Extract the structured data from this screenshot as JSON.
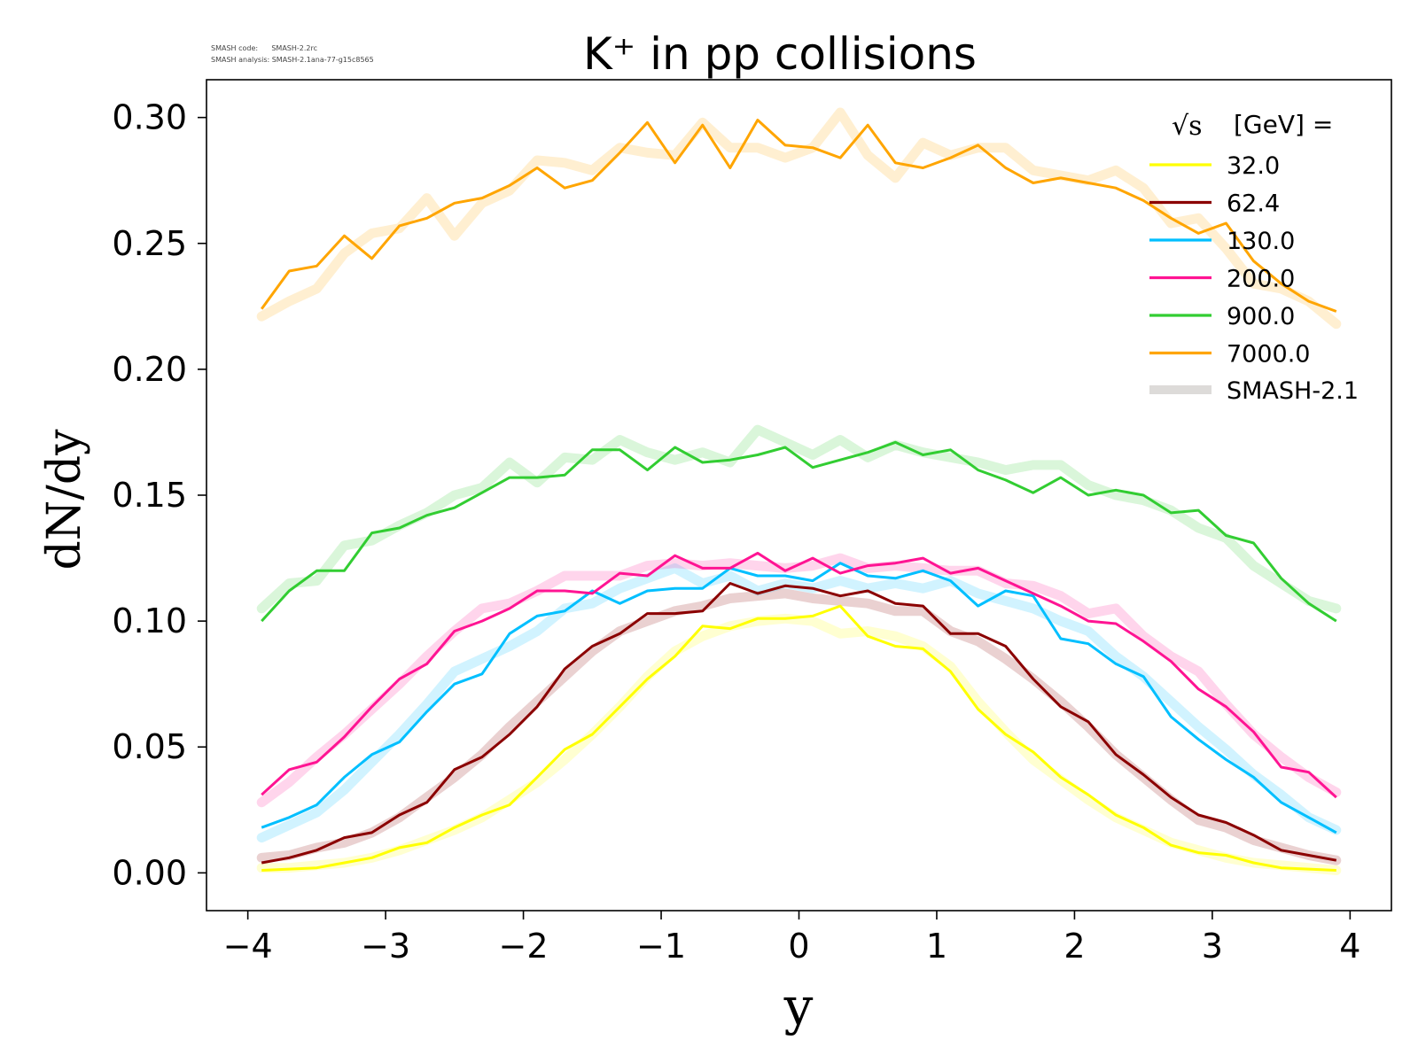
{
  "header": {
    "version_line1": "SMASH code:      SMASH-2.2rc",
    "version_line2": "SMASH analysis: SMASH-2.1ana-77-g15c8565"
  },
  "chart_data": {
    "type": "line",
    "title": "K⁺ in pp collisions",
    "xlabel": "y",
    "ylabel": "dN/dy",
    "xlim": [
      -4.3,
      4.3
    ],
    "ylim": [
      -0.015,
      0.315
    ],
    "xticks": [
      -4,
      -3,
      -2,
      -1,
      0,
      1,
      2,
      3,
      4
    ],
    "xtick_labels": [
      "−4",
      "−3",
      "−2",
      "−1",
      "0",
      "1",
      "2",
      "3",
      "4"
    ],
    "yticks": [
      0.0,
      0.05,
      0.1,
      0.15,
      0.2,
      0.25,
      0.3
    ],
    "ytick_labels": [
      "0.00",
      "0.05",
      "0.10",
      "0.15",
      "0.20",
      "0.25",
      "0.30"
    ],
    "grid": false,
    "legend": {
      "position": "top-right",
      "title_prefix": "√s",
      "title_suffix": "[GeV] =",
      "reference_label": "SMASH-2.1"
    },
    "x": [
      -3.9,
      -3.7,
      -3.5,
      -3.3,
      -3.1,
      -2.9,
      -2.7,
      -2.5,
      -2.3,
      -2.1,
      -1.9,
      -1.7,
      -1.5,
      -1.3,
      -1.1,
      -0.9,
      -0.7,
      -0.5,
      -0.3,
      -0.1,
      0.1,
      0.3,
      0.5,
      0.7,
      0.9,
      1.1,
      1.3,
      1.5,
      1.7,
      1.9,
      2.1,
      2.3,
      2.5,
      2.7,
      2.9,
      3.1,
      3.3,
      3.5,
      3.7,
      3.9
    ],
    "series": [
      {
        "name": "32.0",
        "color": "#ffff00",
        "values": [
          0.001,
          0.0015,
          0.002,
          0.004,
          0.006,
          0.01,
          0.012,
          0.018,
          0.023,
          0.027,
          0.038,
          0.049,
          0.055,
          0.066,
          0.077,
          0.086,
          0.098,
          0.097,
          0.101,
          0.101,
          0.102,
          0.106,
          0.094,
          0.09,
          0.089,
          0.08,
          0.065,
          0.055,
          0.048,
          0.038,
          0.031,
          0.023,
          0.018,
          0.011,
          0.008,
          0.007,
          0.004,
          0.002,
          0.0015,
          0.001
        ],
        "reference": [
          0.002,
          0.002,
          0.003,
          0.004,
          0.006,
          0.009,
          0.013,
          0.017,
          0.022,
          0.029,
          0.036,
          0.045,
          0.055,
          0.066,
          0.078,
          0.088,
          0.094,
          0.098,
          0.1,
          0.101,
          0.1,
          0.095,
          0.096,
          0.094,
          0.09,
          0.082,
          0.068,
          0.056,
          0.045,
          0.037,
          0.029,
          0.022,
          0.017,
          0.012,
          0.009,
          0.006,
          0.004,
          0.003,
          0.002,
          0.001
        ]
      },
      {
        "name": "62.4",
        "color": "#8b0000",
        "values": [
          0.004,
          0.006,
          0.009,
          0.014,
          0.016,
          0.023,
          0.028,
          0.041,
          0.046,
          0.055,
          0.066,
          0.081,
          0.09,
          0.095,
          0.103,
          0.103,
          0.104,
          0.115,
          0.111,
          0.114,
          0.113,
          0.11,
          0.112,
          0.107,
          0.106,
          0.095,
          0.095,
          0.09,
          0.077,
          0.066,
          0.06,
          0.047,
          0.039,
          0.03,
          0.023,
          0.02,
          0.015,
          0.009,
          0.007,
          0.005
        ],
        "reference": [
          0.006,
          0.007,
          0.01,
          0.012,
          0.016,
          0.022,
          0.03,
          0.038,
          0.047,
          0.058,
          0.068,
          0.078,
          0.088,
          0.096,
          0.1,
          0.104,
          0.106,
          0.109,
          0.11,
          0.111,
          0.109,
          0.108,
          0.107,
          0.104,
          0.104,
          0.096,
          0.092,
          0.085,
          0.077,
          0.068,
          0.058,
          0.047,
          0.038,
          0.029,
          0.021,
          0.018,
          0.013,
          0.01,
          0.007,
          0.005
        ]
      },
      {
        "name": "130.0",
        "color": "#00bfff",
        "values": [
          0.018,
          0.022,
          0.027,
          0.038,
          0.047,
          0.052,
          0.064,
          0.075,
          0.079,
          0.095,
          0.102,
          0.104,
          0.112,
          0.107,
          0.112,
          0.113,
          0.113,
          0.121,
          0.118,
          0.118,
          0.116,
          0.123,
          0.118,
          0.117,
          0.12,
          0.116,
          0.106,
          0.112,
          0.11,
          0.093,
          0.091,
          0.083,
          0.078,
          0.062,
          0.053,
          0.045,
          0.038,
          0.028,
          0.022,
          0.016
        ],
        "reference": [
          0.014,
          0.019,
          0.024,
          0.033,
          0.044,
          0.055,
          0.067,
          0.08,
          0.085,
          0.09,
          0.096,
          0.105,
          0.107,
          0.113,
          0.117,
          0.121,
          0.115,
          0.118,
          0.112,
          0.115,
          0.113,
          0.116,
          0.113,
          0.115,
          0.113,
          0.116,
          0.111,
          0.108,
          0.105,
          0.1,
          0.096,
          0.086,
          0.078,
          0.068,
          0.058,
          0.049,
          0.039,
          0.031,
          0.022,
          0.017
        ]
      },
      {
        "name": "200.0",
        "color": "#ff1493",
        "values": [
          0.031,
          0.041,
          0.044,
          0.054,
          0.066,
          0.077,
          0.083,
          0.096,
          0.1,
          0.105,
          0.112,
          0.112,
          0.111,
          0.119,
          0.118,
          0.126,
          0.121,
          0.121,
          0.127,
          0.12,
          0.125,
          0.119,
          0.122,
          0.123,
          0.125,
          0.119,
          0.121,
          0.116,
          0.111,
          0.106,
          0.1,
          0.099,
          0.092,
          0.084,
          0.073,
          0.066,
          0.056,
          0.042,
          0.04,
          0.03
        ],
        "reference": [
          0.028,
          0.036,
          0.046,
          0.055,
          0.065,
          0.075,
          0.086,
          0.096,
          0.105,
          0.107,
          0.112,
          0.118,
          0.118,
          0.118,
          0.122,
          0.123,
          0.122,
          0.123,
          0.122,
          0.121,
          0.122,
          0.125,
          0.121,
          0.122,
          0.121,
          0.12,
          0.12,
          0.115,
          0.114,
          0.11,
          0.103,
          0.105,
          0.094,
          0.086,
          0.08,
          0.067,
          0.055,
          0.046,
          0.038,
          0.032
        ]
      },
      {
        "name": "900.0",
        "color": "#32cd32",
        "values": [
          0.1,
          0.112,
          0.12,
          0.12,
          0.135,
          0.137,
          0.142,
          0.145,
          0.151,
          0.157,
          0.157,
          0.158,
          0.168,
          0.168,
          0.16,
          0.169,
          0.163,
          0.164,
          0.166,
          0.169,
          0.161,
          0.164,
          0.167,
          0.171,
          0.166,
          0.168,
          0.16,
          0.156,
          0.151,
          0.157,
          0.15,
          0.152,
          0.15,
          0.143,
          0.144,
          0.134,
          0.131,
          0.117,
          0.107,
          0.1
        ],
        "reference": [
          0.105,
          0.115,
          0.116,
          0.13,
          0.132,
          0.138,
          0.143,
          0.15,
          0.153,
          0.163,
          0.155,
          0.165,
          0.164,
          0.172,
          0.167,
          0.164,
          0.167,
          0.163,
          0.176,
          0.171,
          0.166,
          0.172,
          0.165,
          0.17,
          0.167,
          0.165,
          0.163,
          0.16,
          0.162,
          0.162,
          0.154,
          0.15,
          0.148,
          0.144,
          0.137,
          0.133,
          0.122,
          0.115,
          0.108,
          0.105
        ]
      },
      {
        "name": "7000.0",
        "color": "#ffa500",
        "values": [
          0.224,
          0.239,
          0.241,
          0.253,
          0.244,
          0.257,
          0.26,
          0.266,
          0.268,
          0.273,
          0.28,
          0.272,
          0.275,
          0.286,
          0.298,
          0.282,
          0.297,
          0.28,
          0.299,
          0.289,
          0.288,
          0.284,
          0.297,
          0.282,
          0.28,
          0.284,
          0.289,
          0.28,
          0.274,
          0.276,
          0.274,
          0.272,
          0.267,
          0.26,
          0.254,
          0.258,
          0.243,
          0.234,
          0.227,
          0.223
        ],
        "reference": [
          0.221,
          0.227,
          0.232,
          0.246,
          0.254,
          0.256,
          0.268,
          0.253,
          0.266,
          0.271,
          0.283,
          0.282,
          0.279,
          0.288,
          0.286,
          0.285,
          0.298,
          0.288,
          0.288,
          0.284,
          0.288,
          0.302,
          0.285,
          0.276,
          0.29,
          0.285,
          0.288,
          0.288,
          0.279,
          0.277,
          0.275,
          0.279,
          0.272,
          0.258,
          0.26,
          0.248,
          0.234,
          0.232,
          0.227,
          0.218
        ]
      }
    ]
  }
}
